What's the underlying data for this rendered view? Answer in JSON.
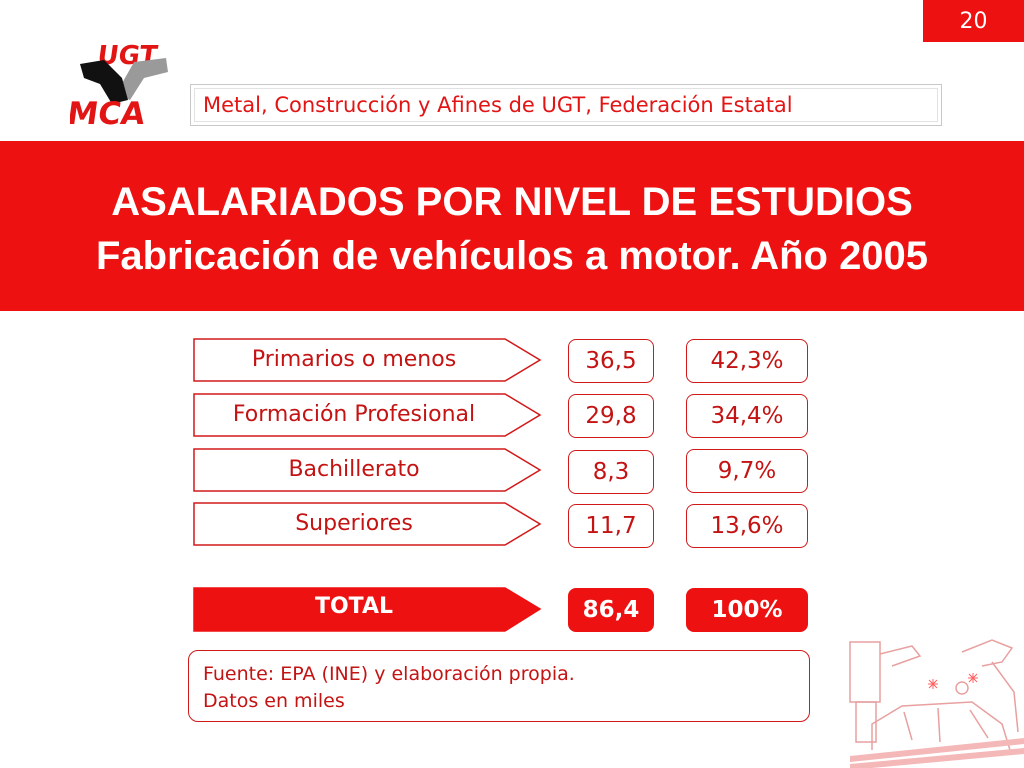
{
  "page_number": "20",
  "logo": {
    "top_text": "UGT",
    "bottom_text": "MCA"
  },
  "header": {
    "organization": "Metal, Construcción y Afines de UGT, Federación Estatal"
  },
  "title": {
    "line1": "ASALARIADOS POR NIVEL DE ESTUDIOS",
    "line2": "Fabricación de vehículos a motor. Año 2005"
  },
  "table": {
    "rows": [
      {
        "label": "Primarios o menos",
        "value": "36,5",
        "percent": "42,3%"
      },
      {
        "label": "Formación Profesional",
        "value": "29,8",
        "percent": "34,4%"
      },
      {
        "label": "Bachillerato",
        "value": "8,3",
        "percent": "9,7%"
      },
      {
        "label": "Superiores",
        "value": "11,7",
        "percent": "13,6%"
      }
    ],
    "total": {
      "label": "TOTAL",
      "value": "86,4",
      "percent": "100%"
    }
  },
  "source": {
    "line1": "Fuente: EPA (INE) y elaboración propia.",
    "line2": "Datos en miles"
  },
  "colors": {
    "accent": "#ee1111",
    "text_red": "#c41313",
    "white": "#ffffff"
  }
}
